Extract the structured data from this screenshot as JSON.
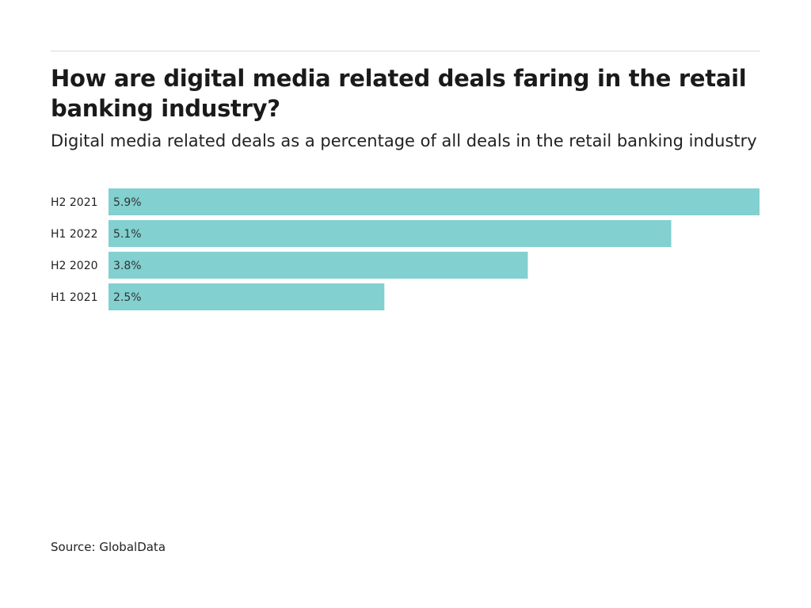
{
  "chart_data": {
    "type": "bar",
    "orientation": "horizontal",
    "title": "How are digital media related deals faring in the retail banking industry?",
    "subtitle": "Digital media related deals as a percentage of all deals in the retail banking industry",
    "categories": [
      "H2 2021",
      "H1 2022",
      "H2 2020",
      "H1 2021"
    ],
    "values": [
      5.9,
      5.1,
      3.8,
      2.5
    ],
    "labels": [
      "5.9%",
      "5.1%",
      "3.8%",
      "2.5%"
    ],
    "xlim": [
      0,
      5.9
    ],
    "xlabel": "",
    "ylabel": "",
    "grid": false,
    "bar_color": "#82d0d0"
  },
  "source": "Source: GlobalData"
}
